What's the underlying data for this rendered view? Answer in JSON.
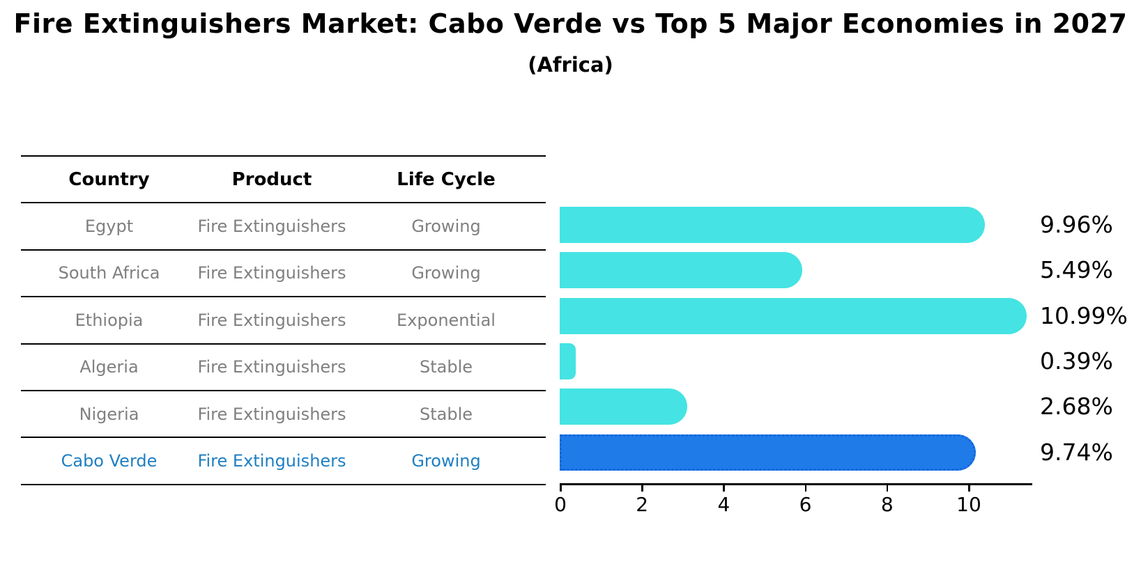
{
  "header": {
    "title": "Fire Extinguishers Market: Cabo Verde vs Top 5 Major Economies in 2027",
    "subtitle": "(Africa)"
  },
  "table": {
    "columns": [
      "Country",
      "Product",
      "Life Cycle"
    ],
    "rows": [
      {
        "country": "Egypt",
        "product": "Fire Extinguishers",
        "life_cycle": "Growing",
        "highlighted": false
      },
      {
        "country": "South Africa",
        "product": "Fire Extinguishers",
        "life_cycle": "Growing",
        "highlighted": false
      },
      {
        "country": "Ethiopia",
        "product": "Fire Extinguishers",
        "life_cycle": "Exponential",
        "highlighted": false
      },
      {
        "country": "Algeria",
        "product": "Fire Extinguishers",
        "life_cycle": "Stable",
        "highlighted": false
      },
      {
        "country": "Nigeria",
        "product": "Fire Extinguishers",
        "life_cycle": "Stable",
        "highlighted": true,
        "_note": ""
      },
      {
        "country": "Cabo Verde",
        "product": "Fire Extinguishers",
        "life_cycle": "Growing",
        "highlighted": true
      }
    ]
  },
  "chart_data": {
    "type": "bar",
    "orientation": "horizontal",
    "title": "Fire Extinguishers Market: Cabo Verde vs Top 5 Major Economies in 2027",
    "subtitle": "(Africa)",
    "categories": [
      "Egypt",
      "South Africa",
      "Ethiopia",
      "Algeria",
      "Nigeria",
      "Cabo Verde"
    ],
    "values": [
      9.96,
      5.49,
      10.99,
      0.39,
      2.68,
      9.74
    ],
    "value_labels": [
      "9.96%",
      "5.49%",
      "10.99%",
      "0.39%",
      "2.68%",
      "9.74%"
    ],
    "life_cycles": [
      "Growing",
      "Growing",
      "Exponential",
      "Stable",
      "Stable",
      "Growing"
    ],
    "highlight_index": 5,
    "xlabel": "",
    "ylabel": "",
    "xlim": [
      0,
      11.6
    ],
    "x_ticks": [
      0,
      2,
      4,
      6,
      8,
      10
    ],
    "grid": false,
    "legend": "none",
    "bar_color": "#45e3e3",
    "highlight_color": "#1e7be8",
    "highlight_text_color": "#1e7fc2",
    "row_text_color": "#7f7f7f",
    "label_position": "right-of-axis"
  }
}
